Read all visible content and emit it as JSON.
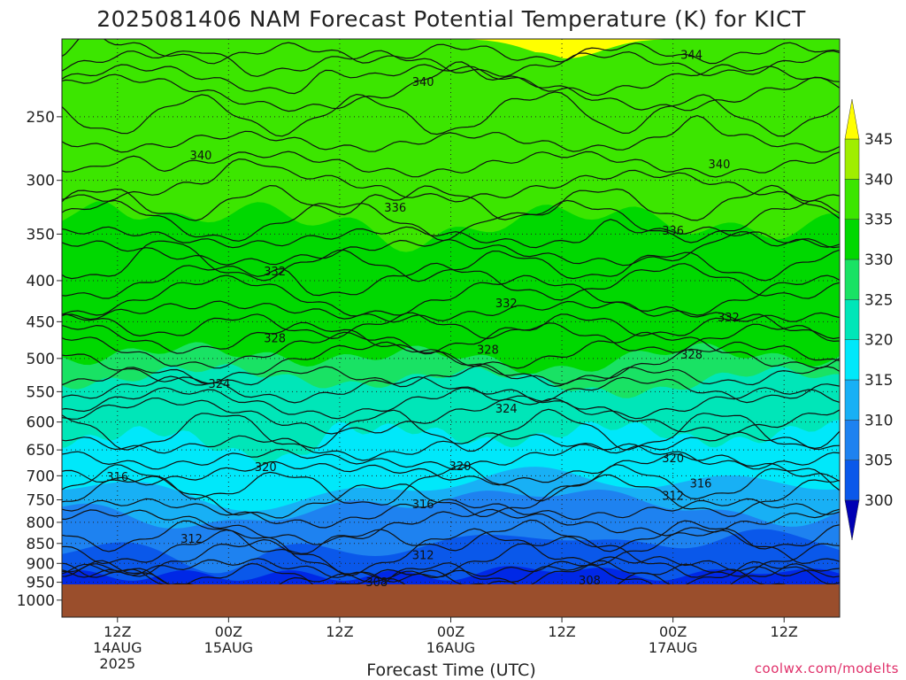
{
  "chart_data": {
    "type": "heatmap",
    "title": "2025081406 NAM Forecast Potential Temperature (K) for KICT",
    "xlabel": "Forecast Time (UTC)",
    "ylabel": "",
    "y_axis": {
      "quantity": "pressure (hPa)",
      "scale": "log",
      "inverted": true,
      "range": [
        1050,
        200
      ],
      "tick_values": [
        1000,
        950,
        900,
        850,
        800,
        750,
        700,
        650,
        600,
        550,
        500,
        450,
        400,
        350,
        300,
        250
      ],
      "tick_labels": [
        "1000",
        "950",
        "900",
        "850",
        "800",
        "750",
        "700",
        "650",
        "600",
        "550",
        "500",
        "450",
        "400",
        "350",
        "300",
        "250"
      ]
    },
    "x_axis": {
      "quantity": "valid time (UTC)",
      "range": [
        "2025-08-14 06Z",
        "2025-08-17 18Z"
      ],
      "ticks": [
        {
          "time": "2025-08-14 12Z",
          "line1": "12Z",
          "line2": "14AUG",
          "line3": "2025"
        },
        {
          "time": "2025-08-15 00Z",
          "line1": "00Z",
          "line2": "15AUG",
          "line3": ""
        },
        {
          "time": "2025-08-15 12Z",
          "line1": "12Z",
          "line2": "",
          "line3": ""
        },
        {
          "time": "2025-08-16 00Z",
          "line1": "00Z",
          "line2": "16AUG",
          "line3": ""
        },
        {
          "time": "2025-08-16 12Z",
          "line1": "12Z",
          "line2": "",
          "line3": ""
        },
        {
          "time": "2025-08-17 00Z",
          "line1": "00Z",
          "line2": "17AUG",
          "line3": ""
        },
        {
          "time": "2025-08-17 12Z",
          "line1": "12Z",
          "line2": "",
          "line3": ""
        }
      ]
    },
    "grid": "dotted",
    "colorbar": {
      "placement": "right",
      "boundaries": [
        300,
        305,
        310,
        315,
        320,
        325,
        330,
        335,
        340,
        345
      ],
      "labels": [
        "300",
        "305",
        "310",
        "315",
        "320",
        "325",
        "330",
        "335",
        "340",
        "345"
      ],
      "colors": [
        "#0028e6",
        "#0a58ea",
        "#1e82f0",
        "#18b0f5",
        "#00e8fa",
        "#00e6b8",
        "#19e264",
        "#00d800",
        "#3ce600",
        "#a0ee00",
        "#f0ff00"
      ],
      "below_color": "#0000b4",
      "above_color": "#ffff00"
    },
    "terrain_color": "#9a4e2c",
    "contour_levels_labeled": [
      308,
      312,
      316,
      320,
      324,
      328,
      332,
      336,
      340,
      344
    ],
    "contour_labels": [
      {
        "value": "344",
        "time": "2025-08-17 02Z",
        "pressure": 209
      },
      {
        "value": "340",
        "time": "2025-08-15 21Z",
        "pressure": 226
      },
      {
        "value": "340",
        "time": "2025-08-14 21Z",
        "pressure": 279
      },
      {
        "value": "340",
        "time": "2025-08-17 05Z",
        "pressure": 286
      },
      {
        "value": "336",
        "time": "2025-08-15 18Z",
        "pressure": 324
      },
      {
        "value": "336",
        "time": "2025-08-17 00Z",
        "pressure": 346
      },
      {
        "value": "332",
        "time": "2025-08-15 05Z",
        "pressure": 389
      },
      {
        "value": "332",
        "time": "2025-08-16 06Z",
        "pressure": 426
      },
      {
        "value": "332",
        "time": "2025-08-17 06Z",
        "pressure": 444
      },
      {
        "value": "328",
        "time": "2025-08-15 05Z",
        "pressure": 471
      },
      {
        "value": "328",
        "time": "2025-08-16 04Z",
        "pressure": 487
      },
      {
        "value": "328",
        "time": "2025-08-17 02Z",
        "pressure": 494
      },
      {
        "value": "324",
        "time": "2025-08-14 23Z",
        "pressure": 537
      },
      {
        "value": "324",
        "time": "2025-08-16 06Z",
        "pressure": 577
      },
      {
        "value": "320",
        "time": "2025-08-15 04Z",
        "pressure": 682
      },
      {
        "value": "320",
        "time": "2025-08-16 01Z",
        "pressure": 680
      },
      {
        "value": "320",
        "time": "2025-08-17 00Z",
        "pressure": 665
      },
      {
        "value": "316",
        "time": "2025-08-14 12Z",
        "pressure": 701
      },
      {
        "value": "316",
        "time": "2025-08-15 21Z",
        "pressure": 759
      },
      {
        "value": "316",
        "time": "2025-08-17 03Z",
        "pressure": 715
      },
      {
        "value": "312",
        "time": "2025-08-17 00Z",
        "pressure": 741
      },
      {
        "value": "312",
        "time": "2025-08-14 20Z",
        "pressure": 838
      },
      {
        "value": "312",
        "time": "2025-08-15 21Z",
        "pressure": 878
      },
      {
        "value": "308",
        "time": "2025-08-15 16Z",
        "pressure": 948
      },
      {
        "value": "308",
        "time": "2025-08-16 15Z",
        "pressure": 944
      }
    ]
  },
  "credit": "coolwx.com/modelts"
}
